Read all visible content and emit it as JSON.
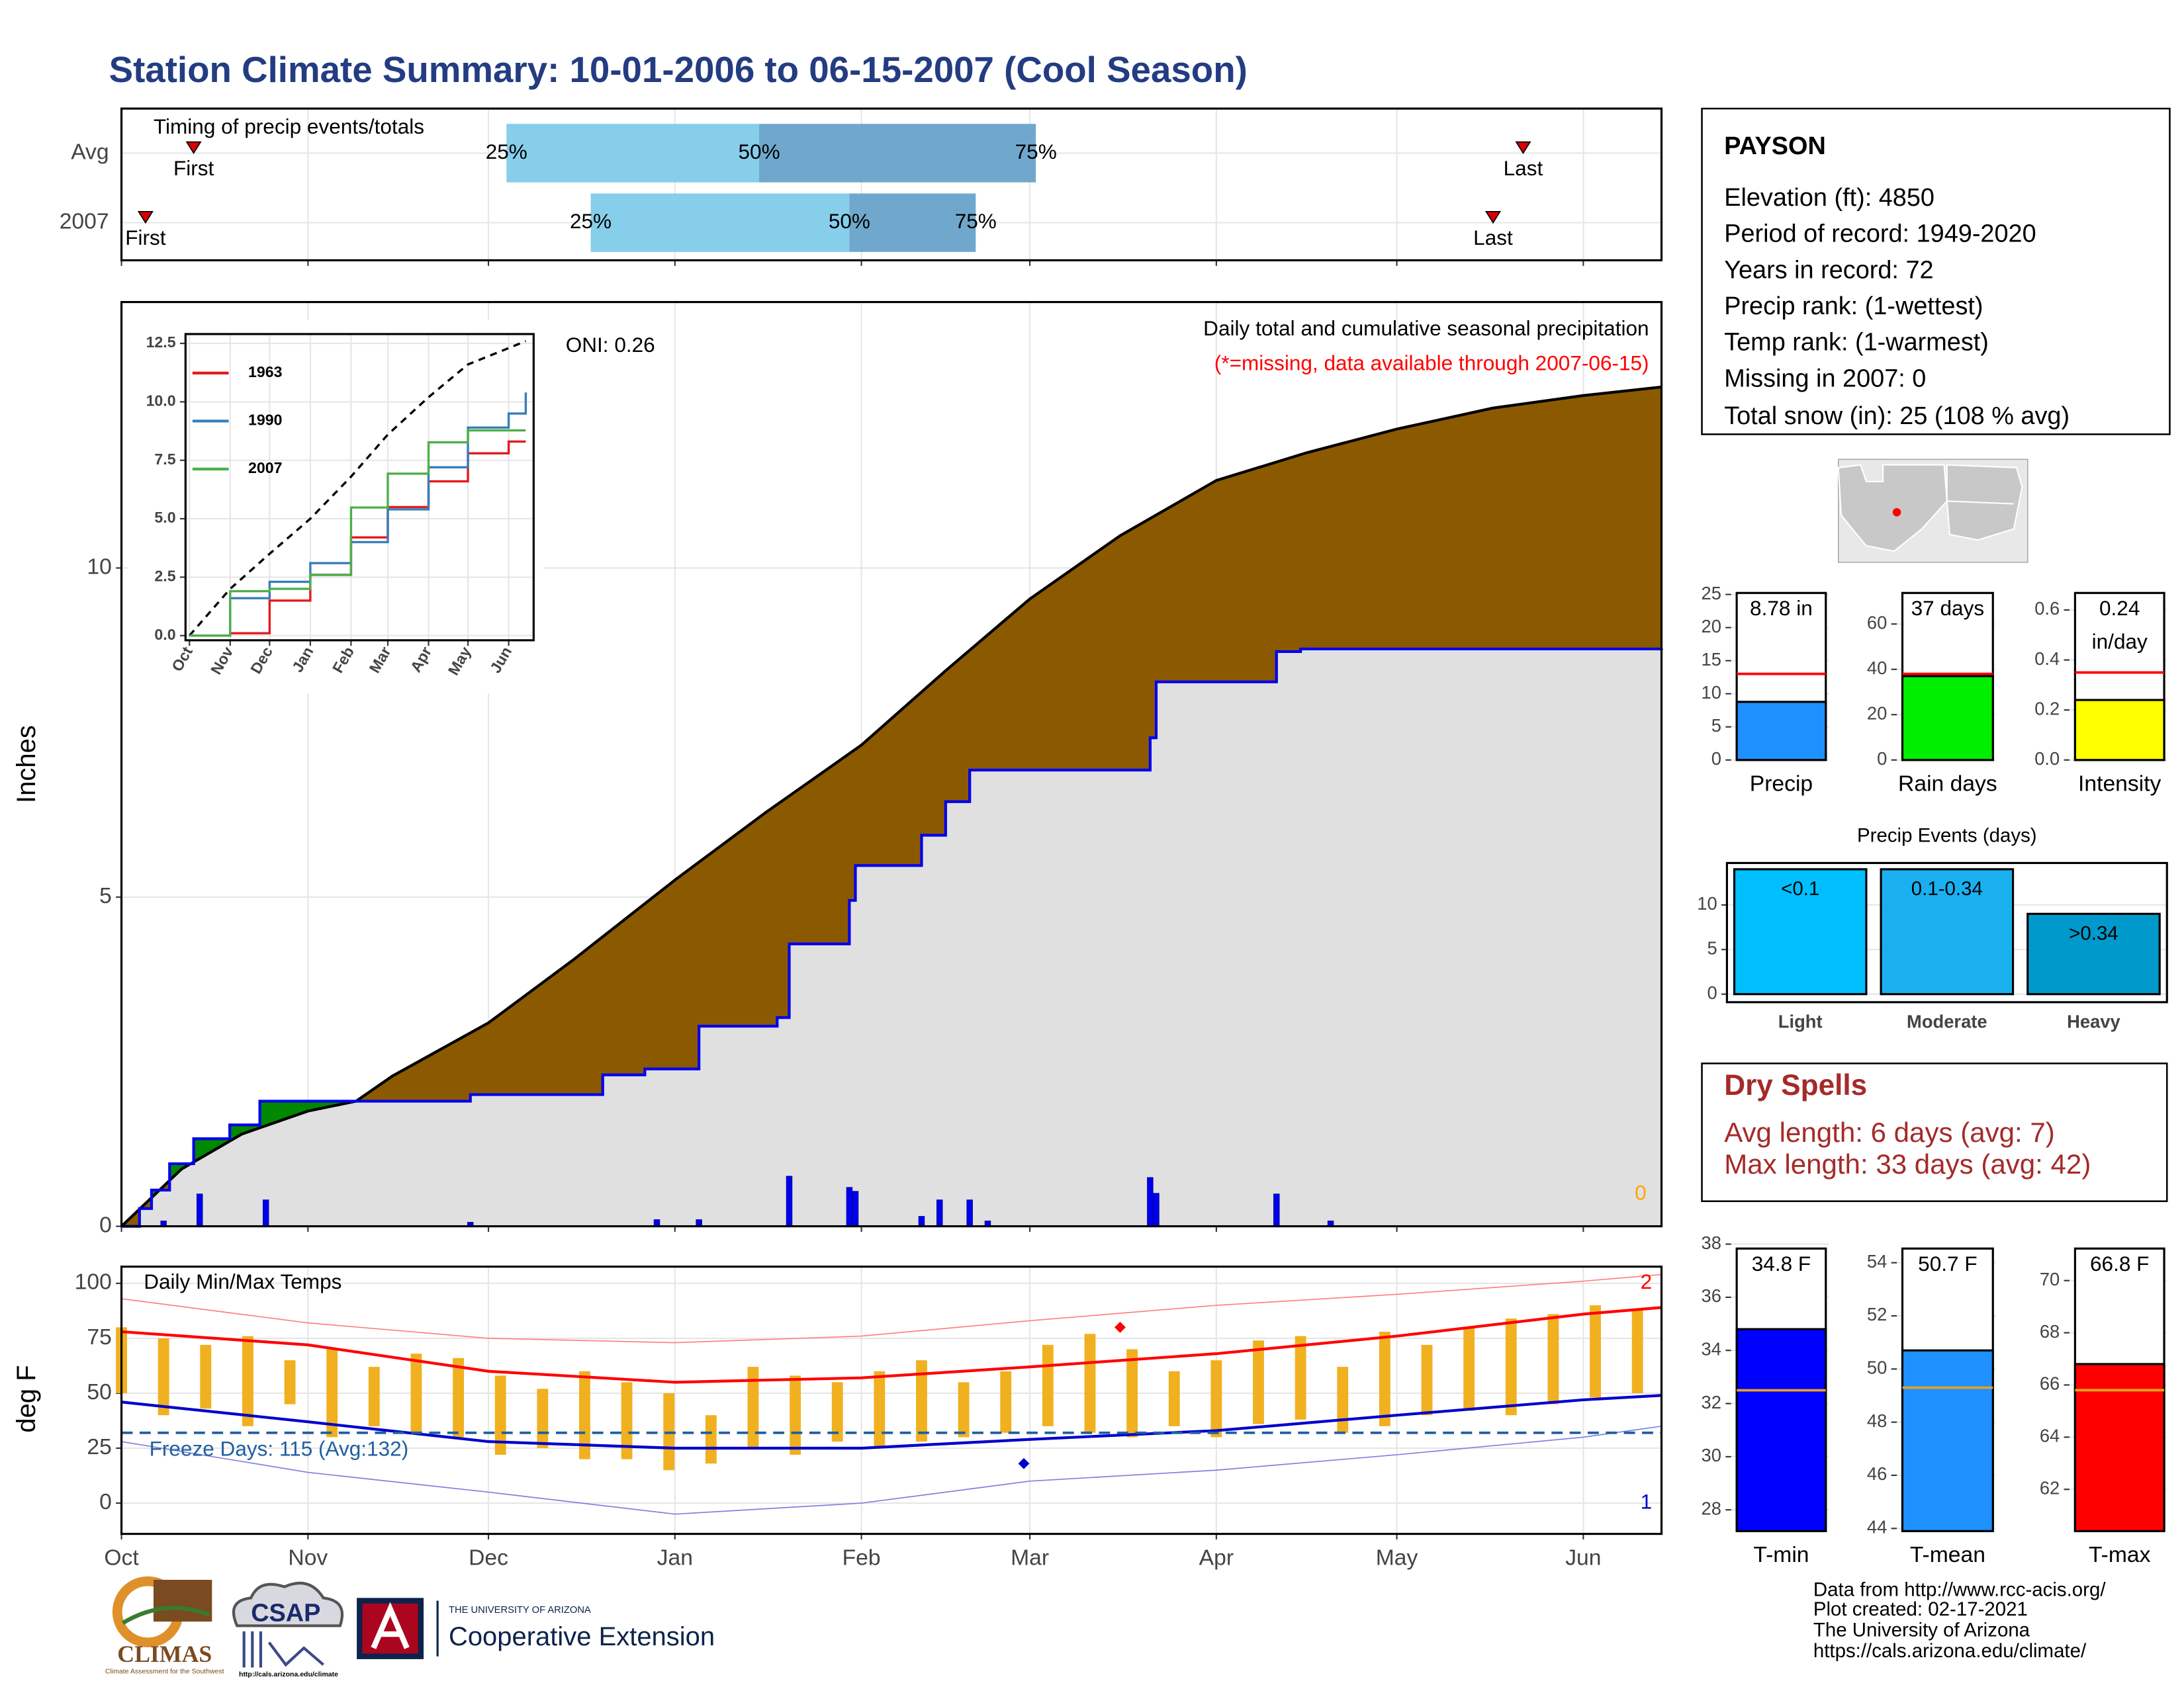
{
  "title": "Station Climate Summary: 10-01-2006 to 06-15-2007 (Cool Season)",
  "chart_data": [
    {
      "type": "timeline",
      "title": "Timing of precip events/totals",
      "categories": [
        "Avg",
        "2007"
      ],
      "first": [
        12,
        4
      ],
      "p25": [
        64,
        78
      ],
      "p50": [
        106,
        121
      ],
      "p75": [
        152,
        142
      ],
      "last": [
        233,
        228
      ],
      "labels": {
        "first": "First",
        "last": "Last",
        "p25": "25%",
        "p50": "50%",
        "p75": "75%"
      },
      "colors": [
        "#87ceeb",
        "#6fa8cc"
      ],
      "marker_color": "#dd0000",
      "xlim": [
        0,
        256
      ],
      "xticks": [
        0,
        31,
        61,
        92,
        123,
        151,
        182,
        212,
        243
      ],
      "grid": true
    },
    {
      "type": "area",
      "title": "Daily total and cumulative seasonal precipitation",
      "note": "(*=missing, data available through 2007-06-15)",
      "oni": "ONI: 0.26",
      "missing_label": "0",
      "ylabel": "Inches",
      "xlim": [
        0,
        256
      ],
      "ylim": [
        0,
        14.04
      ],
      "xticks": [
        0,
        31,
        61,
        92,
        123,
        151,
        182,
        212,
        243
      ],
      "yticks": [
        0,
        5,
        10
      ],
      "grid": true,
      "excess_color": "#008800",
      "series": [
        {
          "color": "#000000",
          "fill": "#8b5a00",
          "step": false,
          "x": [
            0,
            10,
            20,
            31,
            39,
            45,
            61,
            75,
            92,
            107,
            123,
            137,
            151,
            166,
            182,
            197,
            212,
            228,
            243,
            256
          ],
          "values": [
            0,
            0.87,
            1.4,
            1.75,
            1.9,
            2.28,
            3.09,
            4.04,
            5.26,
            6.28,
            7.31,
            8.44,
            9.53,
            10.49,
            11.33,
            11.75,
            12.11,
            12.43,
            12.62,
            12.75
          ]
        },
        {
          "color": "#0000ee",
          "fill": "#e0e0e0",
          "step": true,
          "x": [
            0,
            3,
            5,
            8,
            12,
            18,
            23,
            58,
            80,
            87,
            96,
            109,
            111,
            121,
            122,
            133,
            137,
            141,
            171,
            172,
            192,
            196,
            256
          ],
          "values": [
            0,
            0.27,
            0.55,
            0.95,
            1.33,
            1.54,
            1.9,
            2.0,
            2.3,
            2.39,
            3.04,
            3.17,
            4.29,
            4.95,
            5.48,
            5.94,
            6.45,
            6.93,
            7.42,
            8.27,
            8.73,
            8.77,
            8.78
          ]
        }
      ],
      "bars": {
        "color": "#0000ee",
        "x": [
          7,
          13,
          24,
          58,
          89,
          96,
          111,
          121,
          122,
          133,
          136,
          141,
          144,
          171,
          172,
          192,
          201
        ],
        "values": [
          0.08,
          0.49,
          0.4,
          0.06,
          0.1,
          0.1,
          0.76,
          0.59,
          0.53,
          0.15,
          0.4,
          0.4,
          0.08,
          0.74,
          0.5,
          0.49,
          0.08
        ]
      }
    },
    {
      "type": "line",
      "xlim": [
        -3,
        262
      ],
      "ylim": [
        -0.2,
        12.9
      ],
      "x": [
        0,
        31,
        61,
        92,
        123,
        151,
        182,
        212,
        243,
        256
      ],
      "xticks": [
        {
          "value": 0,
          "label": "Oct"
        },
        {
          "value": 31,
          "label": "Nov"
        },
        {
          "value": 61,
          "label": "Dec"
        },
        {
          "value": 92,
          "label": "Jan"
        },
        {
          "value": 123,
          "label": "Feb"
        },
        {
          "value": 151,
          "label": "Mar"
        },
        {
          "value": 182,
          "label": "Apr"
        },
        {
          "value": 212,
          "label": "May"
        },
        {
          "value": 243,
          "label": "Jun"
        }
      ],
      "yticks": [
        {
          "value": 0,
          "label": "0.0"
        },
        {
          "value": 2.5,
          "label": "2.5"
        },
        {
          "value": 5,
          "label": "5.0"
        },
        {
          "value": 7.5,
          "label": "7.5"
        },
        {
          "value": 10,
          "label": "10.0"
        },
        {
          "value": 12.5,
          "label": "12.5"
        }
      ],
      "grid": true,
      "series": [
        {
          "color": "#000000",
          "dash": true,
          "values": [
            0,
            2.0,
            3.5,
            5.0,
            6.8,
            8.6,
            10.2,
            11.6,
            12.3,
            12.6
          ]
        },
        {
          "name": "1963",
          "color": "#e41a1c",
          "values": [
            0,
            0.1,
            1.5,
            2.6,
            4.2,
            5.5,
            6.6,
            7.8,
            8.3,
            8.3
          ]
        },
        {
          "name": "1990",
          "color": "#377eb8",
          "values": [
            0,
            1.6,
            2.3,
            3.1,
            4.0,
            5.4,
            7.2,
            8.9,
            9.5,
            10.4
          ]
        },
        {
          "name": "2007",
          "color": "#4daf4a",
          "values": [
            0,
            1.9,
            2.0,
            2.6,
            5.48,
            6.93,
            8.27,
            8.78,
            8.78,
            8.78
          ]
        }
      ]
    },
    {
      "type": "range",
      "title": "Daily Min/Max Temps",
      "ylabel": "deg F",
      "freeze_label": "Freeze Days: 115 (Avg:132)",
      "freeze_line": 32,
      "freeze_color": "#1f5fa0",
      "record_high_label": "2",
      "record_low_label": "1",
      "xlim": [
        0,
        256
      ],
      "ylim": [
        -14,
        107.6
      ],
      "xticks": [
        {
          "value": 0,
          "label": "Oct"
        },
        {
          "value": 31,
          "label": "Nov"
        },
        {
          "value": 61,
          "label": "Dec"
        },
        {
          "value": 92,
          "label": "Jan"
        },
        {
          "value": 123,
          "label": "Feb"
        },
        {
          "value": 151,
          "label": "Mar"
        },
        {
          "value": 182,
          "label": "Apr"
        },
        {
          "value": 212,
          "label": "May"
        },
        {
          "value": 243,
          "label": "Jun"
        }
      ],
      "yticks": [
        0,
        25,
        50,
        75,
        100
      ],
      "grid": true,
      "bars": {
        "color": "#f0b020",
        "x": [
          0,
          7,
          14,
          21,
          28,
          35,
          42,
          49,
          56,
          63,
          70,
          77,
          84,
          91,
          98,
          105,
          112,
          119,
          126,
          133,
          140,
          147,
          154,
          161,
          168,
          175,
          182,
          189,
          196,
          203,
          210,
          217,
          224,
          231,
          238,
          245,
          252
        ],
        "high": [
          80,
          75,
          72,
          76,
          65,
          70,
          62,
          68,
          66,
          58,
          52,
          60,
          55,
          50,
          40,
          62,
          58,
          55,
          60,
          65,
          55,
          60,
          72,
          77,
          70,
          60,
          65,
          74,
          76,
          62,
          78,
          72,
          80,
          84,
          86,
          90,
          88
        ],
        "low": [
          50,
          40,
          43,
          35,
          45,
          30,
          35,
          32,
          30,
          22,
          25,
          20,
          20,
          15,
          18,
          25,
          22,
          28,
          25,
          28,
          30,
          32,
          35,
          32,
          30,
          35,
          30,
          36,
          38,
          32,
          35,
          40,
          42,
          40,
          45,
          48,
          50
        ]
      },
      "lines": [
        {
          "color": "#ff8080",
          "width": 0.8,
          "x": [
            0,
            31,
            61,
            92,
            123,
            151,
            182,
            212,
            243,
            256
          ],
          "values": [
            93,
            82,
            75,
            73,
            76,
            83,
            90,
            95,
            101,
            104
          ]
        },
        {
          "color": "#8080e0",
          "width": 0.8,
          "x": [
            0,
            31,
            61,
            92,
            123,
            151,
            182,
            212,
            243,
            256
          ],
          "values": [
            28,
            14,
            5,
            -5,
            0,
            10,
            15,
            22,
            30,
            35
          ]
        },
        {
          "color": "#ff0000",
          "width": 2,
          "x": [
            0,
            31,
            61,
            92,
            123,
            151,
            182,
            212,
            243,
            256
          ],
          "values": [
            78,
            72,
            60,
            55,
            57,
            62,
            68,
            76,
            86,
            89
          ]
        },
        {
          "color": "#0000cc",
          "width": 2,
          "x": [
            0,
            31,
            61,
            92,
            123,
            151,
            182,
            212,
            243,
            256
          ],
          "values": [
            46,
            37,
            28,
            25,
            25,
            29,
            33,
            40,
            47,
            49
          ]
        }
      ],
      "markers": [
        {
          "x": 166,
          "value": 80,
          "color": "#ff0000"
        },
        {
          "x": 150,
          "value": 18,
          "color": "#0000cc"
        }
      ]
    },
    {
      "type": "bar",
      "categories": [
        "Precip"
      ],
      "values": [
        8.78
      ],
      "value_labels": [
        "8.78 in"
      ],
      "color": "#1e90ff",
      "avg_line": 13,
      "avg_color": "#ff0000",
      "ylim": [
        0,
        26.7
      ],
      "yticks": [
        0,
        5,
        10,
        15,
        20,
        25
      ],
      "grid": true
    },
    {
      "type": "bar",
      "categories": [
        "Rain days"
      ],
      "values": [
        37
      ],
      "value_labels": [
        "37 days"
      ],
      "color": "#00ee00",
      "avg_line": 38,
      "avg_color": "#ff0000",
      "ylim": [
        0,
        78
      ],
      "yticks": [
        0,
        20,
        40,
        60
      ],
      "grid": true
    },
    {
      "type": "bar",
      "categories": [
        "Intensity"
      ],
      "values": [
        0.24
      ],
      "value_labels": [
        "0.24 in/day"
      ],
      "color": "#ffff00",
      "avg_line": 0.35,
      "avg_color": "#ff0000",
      "ylim": [
        0,
        0.707
      ],
      "yticks": [
        {
          "value": 0,
          "label": "0.0"
        },
        0.2,
        0.4,
        0.6
      ],
      "grid": true
    },
    {
      "type": "bar",
      "title": "Precip Events (days)",
      "categories": [
        "Light",
        "Moderate",
        "Heavy"
      ],
      "values": [
        14,
        14,
        9
      ],
      "bar_labels": [
        "<0.1",
        "0.1-0.34",
        ">0.34"
      ],
      "colors": [
        "#00bfff",
        "#1ab0f0",
        "#0099cc"
      ],
      "ylim": [
        -0.9,
        14.7
      ],
      "yticks": [
        0,
        5,
        10
      ],
      "grid": true
    },
    {
      "type": "bar",
      "categories": [
        "T-min"
      ],
      "values": [
        34.8
      ],
      "value_labels": [
        "34.8 F"
      ],
      "color": "#0000ff",
      "avg_line": 32.5,
      "avg_color": "#e8a020",
      "ylim": [
        27.2,
        38.2
      ],
      "yticks": [
        28,
        30,
        32,
        34,
        36,
        38
      ],
      "grid": true
    },
    {
      "type": "bar",
      "categories": [
        "T-mean"
      ],
      "values": [
        50.7
      ],
      "value_labels": [
        "50.7 F"
      ],
      "color": "#1e90ff",
      "avg_line": 49.3,
      "avg_color": "#e8a020",
      "ylim": [
        43.9,
        54.9
      ],
      "yticks": [
        44,
        46,
        48,
        50,
        52,
        54
      ],
      "grid": true
    },
    {
      "type": "bar",
      "categories": [
        "T-max"
      ],
      "values": [
        66.8
      ],
      "value_labels": [
        "66.8 F"
      ],
      "color": "#ff0000",
      "avg_line": 65.8,
      "avg_color": "#e8a020",
      "ylim": [
        60.4,
        71.6
      ],
      "yticks": [
        62,
        64,
        66,
        68,
        70
      ],
      "grid": true
    }
  ],
  "info": {
    "title": "PAYSON",
    "lines": [
      "Elevation (ft): 4850",
      "Period of record: 1949-2020",
      "Years in record: 72",
      "Precip rank:  (1-wettest)",
      "Temp rank:  (1-warmest)",
      "Missing in 2007: 0",
      "Total snow (in): 25 (108 % avg)"
    ]
  },
  "dry_spells": {
    "title": "Dry Spells",
    "lines": [
      "Avg length: 6 days (avg: 7)",
      "Max length: 33 days (avg: 42)"
    ]
  },
  "footer": {
    "climas": "CLIMAS",
    "climas_tagline": "Climate Assessment for the Southwest",
    "csap": "CSAP",
    "csap_url": "http://cals.arizona.edu/climate",
    "university": "THE UNIVERSITY OF ARIZONA",
    "extension": "Cooperative Extension",
    "credits": [
      "Data from http://www.rcc-acis.org/",
      "Plot created: 02-17-2021",
      "The University of Arizona",
      "https://cals.arizona.edu/climate/"
    ]
  }
}
